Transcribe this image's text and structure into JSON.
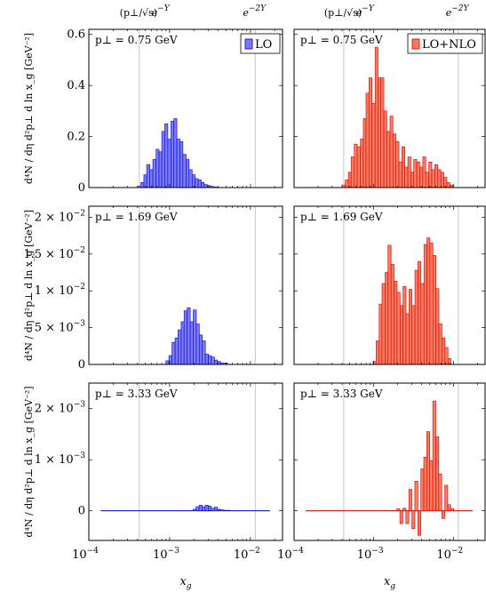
{
  "chart_data": {
    "type": "bar",
    "xlabel": "x_g",
    "xscale": "log",
    "xlim": [
      0.0001,
      0.025
    ],
    "xticks": [
      {
        "value": 0.0001,
        "label": "10^-4"
      },
      {
        "value": 0.001,
        "label": "10^-3"
      },
      {
        "value": 0.01,
        "label": "10^-2"
      }
    ],
    "top_labels": [
      {
        "text": "(p⊥/√s) e^-Y",
        "x": 0.00042
      },
      {
        "text": "e^-2Y",
        "x": 0.0115
      }
    ],
    "vertical_lines": [
      0.00042,
      0.0115
    ],
    "ylabel": "d⁴N / dη d²p⊥ d ln x_g [GeV⁻²]",
    "legend": {
      "lo": "LO",
      "lonlo": "LO+NLO",
      "placement": "top-right"
    },
    "colors": {
      "lo_fill": "#7b7bff",
      "lo_stroke": "#0000cc",
      "lonlo_fill": "#ff7a5e",
      "lonlo_stroke": "#d00000"
    },
    "rows": [
      {
        "pt_label": "p⊥ = 0.75 GeV",
        "ylim": [
          0,
          0.62
        ],
        "yticks": [
          {
            "value": 0,
            "label": "0"
          },
          {
            "value": 0.2,
            "label": "0.2"
          },
          {
            "value": 0.4,
            "label": "0.4"
          },
          {
            "value": 0.6,
            "label": "0.6"
          }
        ],
        "lo": {
          "bins": [
            {
              "x0": 0.0004,
              "x1": 0.00044,
              "y": 0.005
            },
            {
              "x0": 0.00044,
              "x1": 0.00048,
              "y": 0.02
            },
            {
              "x0": 0.00048,
              "x1": 0.00052,
              "y": 0.05
            },
            {
              "x0": 0.00052,
              "x1": 0.00057,
              "y": 0.09
            },
            {
              "x0": 0.00057,
              "x1": 0.00062,
              "y": 0.07
            },
            {
              "x0": 0.00062,
              "x1": 0.00068,
              "y": 0.11
            },
            {
              "x0": 0.00068,
              "x1": 0.00074,
              "y": 0.15
            },
            {
              "x0": 0.00074,
              "x1": 0.0008,
              "y": 0.14
            },
            {
              "x0": 0.0008,
              "x1": 0.00087,
              "y": 0.22
            },
            {
              "x0": 0.00087,
              "x1": 0.00095,
              "y": 0.25
            },
            {
              "x0": 0.00095,
              "x1": 0.00104,
              "y": 0.19
            },
            {
              "x0": 0.00104,
              "x1": 0.00113,
              "y": 0.26
            },
            {
              "x0": 0.00113,
              "x1": 0.00123,
              "y": 0.27
            },
            {
              "x0": 0.00123,
              "x1": 0.00134,
              "y": 0.19
            },
            {
              "x0": 0.00134,
              "x1": 0.00146,
              "y": 0.18
            },
            {
              "x0": 0.00146,
              "x1": 0.0016,
              "y": 0.13
            },
            {
              "x0": 0.0016,
              "x1": 0.00174,
              "y": 0.11
            },
            {
              "x0": 0.00174,
              "x1": 0.0019,
              "y": 0.07
            },
            {
              "x0": 0.0019,
              "x1": 0.00207,
              "y": 0.05
            },
            {
              "x0": 0.00207,
              "x1": 0.00226,
              "y": 0.035
            },
            {
              "x0": 0.00226,
              "x1": 0.00246,
              "y": 0.03
            },
            {
              "x0": 0.00246,
              "x1": 0.00268,
              "y": 0.02
            },
            {
              "x0": 0.00268,
              "x1": 0.00292,
              "y": 0.012
            },
            {
              "x0": 0.00292,
              "x1": 0.00318,
              "y": 0.008
            },
            {
              "x0": 0.00318,
              "x1": 0.00347,
              "y": 0.005
            },
            {
              "x0": 0.00347,
              "x1": 0.004,
              "y": 0.002
            }
          ]
        },
        "lonlo": {
          "bins": [
            {
              "x0": 0.0004,
              "x1": 0.00044,
              "y": 0.01
            },
            {
              "x0": 0.00044,
              "x1": 0.00048,
              "y": 0.03
            },
            {
              "x0": 0.00048,
              "x1": 0.00052,
              "y": 0.06
            },
            {
              "x0": 0.00052,
              "x1": 0.00057,
              "y": 0.12
            },
            {
              "x0": 0.00057,
              "x1": 0.00062,
              "y": 0.17
            },
            {
              "x0": 0.00062,
              "x1": 0.00068,
              "y": 0.16
            },
            {
              "x0": 0.00068,
              "x1": 0.00074,
              "y": 0.19
            },
            {
              "x0": 0.00074,
              "x1": 0.0008,
              "y": 0.27
            },
            {
              "x0": 0.0008,
              "x1": 0.00087,
              "y": 0.37
            },
            {
              "x0": 0.00087,
              "x1": 0.00095,
              "y": 0.43
            },
            {
              "x0": 0.00095,
              "x1": 0.00104,
              "y": 0.33
            },
            {
              "x0": 0.00104,
              "x1": 0.00113,
              "y": 0.55
            },
            {
              "x0": 0.00113,
              "x1": 0.00123,
              "y": 0.43
            },
            {
              "x0": 0.00123,
              "x1": 0.00134,
              "y": 0.43
            },
            {
              "x0": 0.00134,
              "x1": 0.00146,
              "y": 0.3
            },
            {
              "x0": 0.00146,
              "x1": 0.0016,
              "y": 0.22
            },
            {
              "x0": 0.0016,
              "x1": 0.00174,
              "y": 0.28
            },
            {
              "x0": 0.00174,
              "x1": 0.0019,
              "y": 0.21
            },
            {
              "x0": 0.0019,
              "x1": 0.00207,
              "y": 0.18
            },
            {
              "x0": 0.00207,
              "x1": 0.00226,
              "y": 0.1
            },
            {
              "x0": 0.00226,
              "x1": 0.00246,
              "y": 0.16
            },
            {
              "x0": 0.00246,
              "x1": 0.00268,
              "y": 0.08
            },
            {
              "x0": 0.00268,
              "x1": 0.00292,
              "y": 0.12
            },
            {
              "x0": 0.00292,
              "x1": 0.00318,
              "y": 0.06
            },
            {
              "x0": 0.00318,
              "x1": 0.00347,
              "y": 0.11
            },
            {
              "x0": 0.00347,
              "x1": 0.00378,
              "y": 0.1
            },
            {
              "x0": 0.00378,
              "x1": 0.00413,
              "y": 0.08
            },
            {
              "x0": 0.00413,
              "x1": 0.0045,
              "y": 0.12
            },
            {
              "x0": 0.0045,
              "x1": 0.00491,
              "y": 0.06
            },
            {
              "x0": 0.00491,
              "x1": 0.00535,
              "y": 0.1
            },
            {
              "x0": 0.00535,
              "x1": 0.00584,
              "y": 0.07
            },
            {
              "x0": 0.00584,
              "x1": 0.00637,
              "y": 0.09
            },
            {
              "x0": 0.00637,
              "x1": 0.00695,
              "y": 0.07
            },
            {
              "x0": 0.00695,
              "x1": 0.00758,
              "y": 0.06
            },
            {
              "x0": 0.00758,
              "x1": 0.00827,
              "y": 0.04
            },
            {
              "x0": 0.00827,
              "x1": 0.00902,
              "y": 0.02
            },
            {
              "x0": 0.00902,
              "x1": 0.00985,
              "y": 0.01
            }
          ]
        }
      },
      {
        "pt_label": "p⊥ = 1.69 GeV",
        "ylim": [
          0,
          0.0215
        ],
        "yticks": [
          {
            "value": 0,
            "label": "0"
          },
          {
            "value": 0.005,
            "label": "5 × 10^-3"
          },
          {
            "value": 0.01,
            "label": "1 × 10^-2"
          },
          {
            "value": 0.015,
            "label": "1.5 × 10^-2"
          },
          {
            "value": 0.02,
            "label": "2 × 10^-2"
          }
        ],
        "lo": {
          "bins": [
            {
              "x0": 0.0009,
              "x1": 0.00098,
              "y": 0.0005
            },
            {
              "x0": 0.00098,
              "x1": 0.00107,
              "y": 0.0012
            },
            {
              "x0": 0.00107,
              "x1": 0.00117,
              "y": 0.003
            },
            {
              "x0": 0.00117,
              "x1": 0.00127,
              "y": 0.0036
            },
            {
              "x0": 0.00127,
              "x1": 0.00139,
              "y": 0.0047
            },
            {
              "x0": 0.00139,
              "x1": 0.00151,
              "y": 0.0058
            },
            {
              "x0": 0.00151,
              "x1": 0.00165,
              "y": 0.0073
            },
            {
              "x0": 0.00165,
              "x1": 0.0018,
              "y": 0.0077
            },
            {
              "x0": 0.0018,
              "x1": 0.00196,
              "y": 0.0058
            },
            {
              "x0": 0.00196,
              "x1": 0.00214,
              "y": 0.0074
            },
            {
              "x0": 0.00214,
              "x1": 0.00233,
              "y": 0.0055
            },
            {
              "x0": 0.00233,
              "x1": 0.00254,
              "y": 0.004
            },
            {
              "x0": 0.00254,
              "x1": 0.00277,
              "y": 0.0032
            },
            {
              "x0": 0.00277,
              "x1": 0.00302,
              "y": 0.0014
            },
            {
              "x0": 0.00302,
              "x1": 0.00329,
              "y": 0.0012
            },
            {
              "x0": 0.00329,
              "x1": 0.00359,
              "y": 0.001
            },
            {
              "x0": 0.00359,
              "x1": 0.00391,
              "y": 0.0006
            },
            {
              "x0": 0.00391,
              "x1": 0.00427,
              "y": 0.0004
            },
            {
              "x0": 0.00427,
              "x1": 0.0052,
              "y": 0.0002
            }
          ]
        },
        "lonlo": {
          "bins": [
            {
              "x0": 0.00098,
              "x1": 0.00107,
              "y": 0.0004
            },
            {
              "x0": 0.00107,
              "x1": 0.00117,
              "y": 0.0032
            },
            {
              "x0": 0.00117,
              "x1": 0.00127,
              "y": 0.0082
            },
            {
              "x0": 0.00127,
              "x1": 0.00139,
              "y": 0.011
            },
            {
              "x0": 0.00139,
              "x1": 0.00151,
              "y": 0.0125
            },
            {
              "x0": 0.00151,
              "x1": 0.00165,
              "y": 0.0162
            },
            {
              "x0": 0.00165,
              "x1": 0.0018,
              "y": 0.0136
            },
            {
              "x0": 0.0018,
              "x1": 0.00196,
              "y": 0.0113
            },
            {
              "x0": 0.00196,
              "x1": 0.00214,
              "y": 0.0098
            },
            {
              "x0": 0.00214,
              "x1": 0.00233,
              "y": 0.008
            },
            {
              "x0": 0.00233,
              "x1": 0.00254,
              "y": 0.0106
            },
            {
              "x0": 0.00254,
              "x1": 0.00277,
              "y": 0.0069
            },
            {
              "x0": 0.00277,
              "x1": 0.00302,
              "y": 0.0102
            },
            {
              "x0": 0.00302,
              "x1": 0.00329,
              "y": 0.008
            },
            {
              "x0": 0.00329,
              "x1": 0.00359,
              "y": 0.0128
            },
            {
              "x0": 0.00359,
              "x1": 0.00391,
              "y": 0.014
            },
            {
              "x0": 0.00391,
              "x1": 0.00427,
              "y": 0.011
            },
            {
              "x0": 0.00427,
              "x1": 0.00465,
              "y": 0.0163
            },
            {
              "x0": 0.00465,
              "x1": 0.00507,
              "y": 0.0172
            },
            {
              "x0": 0.00507,
              "x1": 0.00553,
              "y": 0.0165
            },
            {
              "x0": 0.00553,
              "x1": 0.00604,
              "y": 0.0148
            },
            {
              "x0": 0.00604,
              "x1": 0.00658,
              "y": 0.0103
            },
            {
              "x0": 0.00658,
              "x1": 0.00718,
              "y": 0.0055
            },
            {
              "x0": 0.00718,
              "x1": 0.00783,
              "y": 0.0036
            },
            {
              "x0": 0.00783,
              "x1": 0.00855,
              "y": 0.0023
            },
            {
              "x0": 0.00855,
              "x1": 0.0093,
              "y": 0.0008
            }
          ]
        }
      },
      {
        "pt_label": "p⊥ = 3.33 GeV",
        "ylim": [
          -0.00058,
          0.0025
        ],
        "yticks": [
          {
            "value": 0,
            "label": "0"
          },
          {
            "value": 0.001,
            "label": "1 × 10^-3"
          },
          {
            "value": 0.002,
            "label": "2 × 10^-3"
          }
        ],
        "lo": {
          "bins": [
            {
              "x0": 0.00195,
              "x1": 0.00213,
              "y": 3e-05
            },
            {
              "x0": 0.00213,
              "x1": 0.00232,
              "y": 8e-05
            },
            {
              "x0": 0.00232,
              "x1": 0.00253,
              "y": 0.00011
            },
            {
              "x0": 0.00253,
              "x1": 0.00276,
              "y": 8e-05
            },
            {
              "x0": 0.00276,
              "x1": 0.00301,
              "y": 0.00011
            },
            {
              "x0": 0.00301,
              "x1": 0.00328,
              "y": 9e-05
            },
            {
              "x0": 0.00328,
              "x1": 0.00358,
              "y": 5e-05
            },
            {
              "x0": 0.00358,
              "x1": 0.0039,
              "y": 7e-05
            },
            {
              "x0": 0.0039,
              "x1": 0.00425,
              "y": 3e-05
            },
            {
              "x0": 0.00425,
              "x1": 0.00463,
              "y": 2e-05
            },
            {
              "x0": 0.00463,
              "x1": 0.0056,
              "y": 1e-05
            }
          ]
        },
        "lonlo": {
          "bins": [
            {
              "x0": 0.00195,
              "x1": 0.00213,
              "y": 4e-05
            },
            {
              "x0": 0.00213,
              "x1": 0.00232,
              "y": -0.00025
            },
            {
              "x0": 0.00232,
              "x1": 0.00253,
              "y": 5e-05
            },
            {
              "x0": 0.00253,
              "x1": 0.00276,
              "y": -0.00025
            },
            {
              "x0": 0.00276,
              "x1": 0.00301,
              "y": 0.00042
            },
            {
              "x0": 0.00301,
              "x1": 0.00328,
              "y": -0.00035
            },
            {
              "x0": 0.00328,
              "x1": 0.00358,
              "y": 0.00058
            },
            {
              "x0": 0.00358,
              "x1": 0.0039,
              "y": -0.00048
            },
            {
              "x0": 0.0039,
              "x1": 0.00425,
              "y": 0.00082
            },
            {
              "x0": 0.00425,
              "x1": 0.00463,
              "y": 0.00105
            },
            {
              "x0": 0.00463,
              "x1": 0.00505,
              "y": 0.00155
            },
            {
              "x0": 0.00505,
              "x1": 0.00551,
              "y": 0.00098
            },
            {
              "x0": 0.00551,
              "x1": 0.00601,
              "y": 0.00215
            },
            {
              "x0": 0.00601,
              "x1": 0.00655,
              "y": 0.00145
            },
            {
              "x0": 0.00655,
              "x1": 0.00714,
              "y": 0.00072
            },
            {
              "x0": 0.00714,
              "x1": 0.00779,
              "y": -0.00015
            },
            {
              "x0": 0.00779,
              "x1": 0.00849,
              "y": 0.0005
            },
            {
              "x0": 0.00849,
              "x1": 0.00926,
              "y": 0.00012
            },
            {
              "x0": 0.00926,
              "x1": 0.0101,
              "y": 4e-05
            }
          ]
        }
      }
    ],
    "flat_line": {
      "x": [
        0.00014,
        0.0175
      ]
    }
  }
}
